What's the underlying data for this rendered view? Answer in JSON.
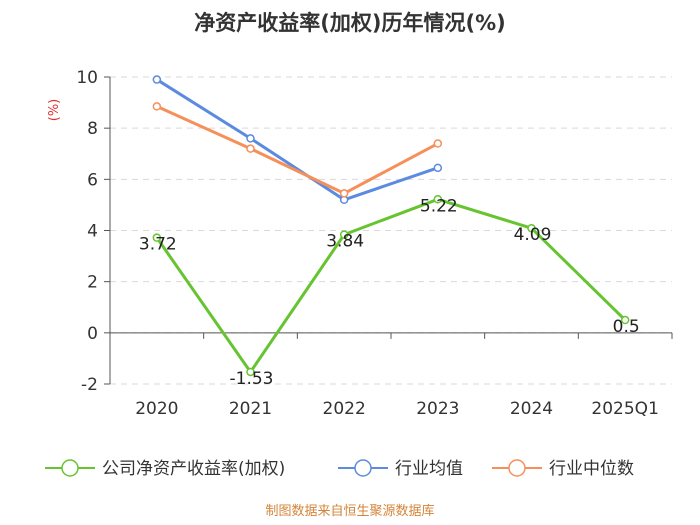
{
  "chart_data": {
    "type": "line",
    "title": "净资产收益率(加权)历年情况(%)",
    "ylabel": "(%)",
    "categories": [
      "2020",
      "2021",
      "2022",
      "2023",
      "2024",
      "2025Q1"
    ],
    "ylim": [
      -2,
      10
    ],
    "yticks": [
      -2,
      0,
      2,
      4,
      6,
      8,
      10
    ],
    "grid": true,
    "legend_position": "bottom",
    "series": [
      {
        "name": "公司净资产收益率(加权)",
        "color": "#66c431",
        "values": [
          3.72,
          -1.53,
          3.84,
          5.22,
          4.09,
          0.5
        ],
        "labels": [
          "3.72",
          "-1.53",
          "3.84",
          "5.22",
          "4.09",
          "0.5"
        ]
      },
      {
        "name": "行业均值",
        "color": "#5b8be0",
        "values": [
          9.9,
          7.6,
          5.2,
          6.45,
          null,
          null
        ]
      },
      {
        "name": "行业中位数",
        "color": "#f5905a",
        "values": [
          8.85,
          7.2,
          5.45,
          7.4,
          null,
          null
        ]
      }
    ]
  },
  "source": "制图数据来自恒生聚源数据库"
}
